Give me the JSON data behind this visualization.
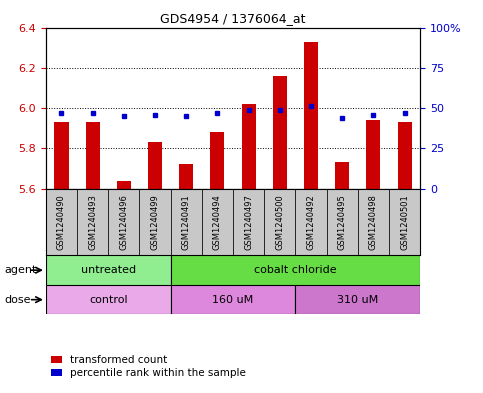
{
  "title": "GDS4954 / 1376064_at",
  "samples": [
    "GSM1240490",
    "GSM1240493",
    "GSM1240496",
    "GSM1240499",
    "GSM1240491",
    "GSM1240494",
    "GSM1240497",
    "GSM1240500",
    "GSM1240492",
    "GSM1240495",
    "GSM1240498",
    "GSM1240501"
  ],
  "red_values": [
    5.93,
    5.93,
    5.64,
    5.83,
    5.72,
    5.88,
    6.02,
    6.16,
    6.33,
    5.73,
    5.94,
    5.93
  ],
  "blue_values_pct": [
    47,
    47,
    45,
    46,
    45,
    47,
    49,
    49,
    51,
    44,
    46,
    47
  ],
  "ymin": 5.6,
  "ymax": 6.4,
  "yticks_left": [
    5.6,
    5.8,
    6.0,
    6.2,
    6.4
  ],
  "yticks_right": [
    0,
    25,
    50,
    75,
    100
  ],
  "yticks_right_labels": [
    "0",
    "25",
    "50",
    "75",
    "100%"
  ],
  "agent_groups": [
    {
      "label": "untreated",
      "start": 0,
      "end": 4,
      "color": "#90EE90"
    },
    {
      "label": "cobalt chloride",
      "start": 4,
      "end": 12,
      "color": "#66DD44"
    }
  ],
  "dose_groups": [
    {
      "label": "control",
      "start": 0,
      "end": 4,
      "color": "#EAAAEA"
    },
    {
      "label": "160 uM",
      "start": 4,
      "end": 8,
      "color": "#DD88DD"
    },
    {
      "label": "310 uM",
      "start": 8,
      "end": 12,
      "color": "#CC77CC"
    }
  ],
  "bar_color": "#CC0000",
  "dot_color": "#0000CC",
  "sample_box_color": "#C8C8C8",
  "background_color": "#ffffff",
  "tick_label_color_left": "#CC0000",
  "tick_label_color_right": "#0000CC",
  "bar_width": 0.45,
  "legend_red_label": "transformed count",
  "legend_blue_label": "percentile rank within the sample"
}
